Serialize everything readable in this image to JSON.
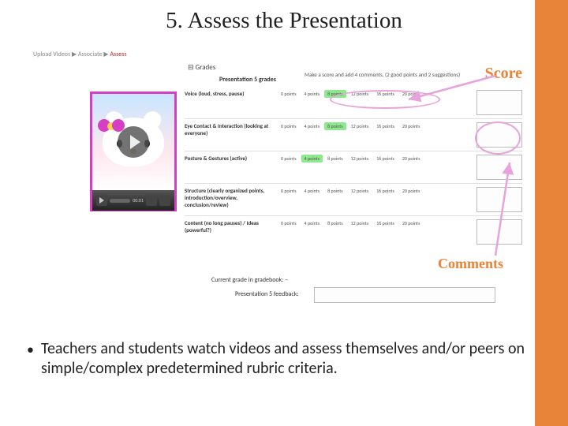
{
  "slide": {
    "title": "5. Assess the Presentation",
    "bullet": "Teachers and students watch videos and assess themselves and/or peers on simple/complex predetermined rubric criteria."
  },
  "annotations": {
    "score_label": "Score",
    "comments_label": "Comments",
    "score_label_color": "#e8833a",
    "comments_label_color": "#e8833a",
    "arrow_color": "#e7a3db",
    "oval_color": "#e7a3db"
  },
  "screenshot": {
    "breadcrumb_prefix": "Upload Videos ▶ Associate ▶ ",
    "breadcrumb_current": "Assess",
    "grades_header": "⊟ Grades",
    "presentation_label": "Presentation 5 grades",
    "instructions": "Make a score and add 4 comments. (2 good points and 2 suggestions)",
    "gradebook_label": "Current grade in gradebook:   –",
    "feedback_label": "Presentation 5 feedback:",
    "video": {
      "time": "00:01",
      "thumb_border_color": "#d63fc4"
    },
    "point_scale": [
      "0 points",
      "4 points",
      "8 points",
      "12 points",
      "16 points",
      "20 points"
    ],
    "criteria": [
      {
        "label": "Voice (loud, stress, pause)",
        "selected_index": 2
      },
      {
        "label": "Eye Contact & Interaction (looking at everyone)",
        "selected_index": 2
      },
      {
        "label": "Posture & Gestures (active)",
        "selected_index": 1
      },
      {
        "label": "Structure (clearly organized points, introduction/overview, conclusion/review)",
        "selected_index": null
      },
      {
        "label": "Content (no long pauses) / Ideas (powerful?)",
        "selected_index": null
      }
    ],
    "colors": {
      "selected_bg": "#8ee88e",
      "row_border": "#e0e0e0",
      "comment_box_border": "#bbbbbb"
    }
  },
  "slide_accent_color": "#e8833a"
}
